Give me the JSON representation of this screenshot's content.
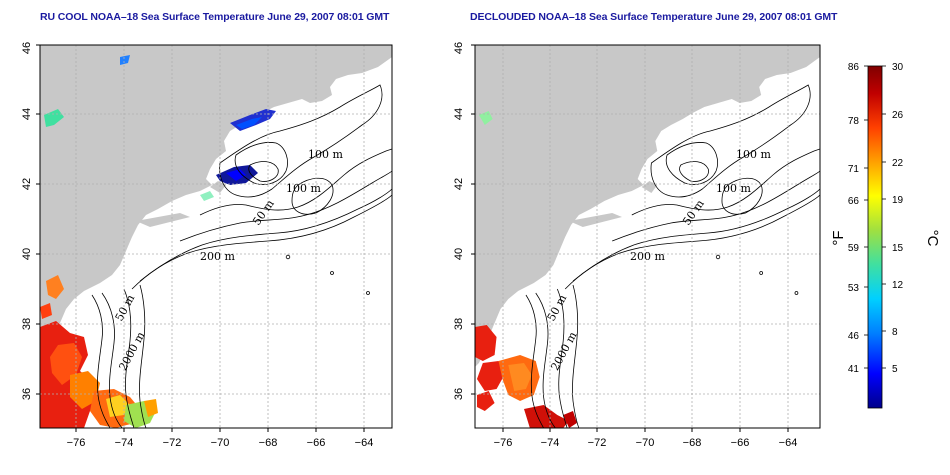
{
  "panels": [
    {
      "title": "RU COOL NOAA–18 Sea Surface Temperature June 29, 2007 08:01 GMT",
      "x_ticks": [
        "−76",
        "−74",
        "−72",
        "−70",
        "−68",
        "−66",
        "−64"
      ],
      "y_ticks": [
        "36",
        "38",
        "40",
        "42",
        "44",
        "46"
      ],
      "contour_labels": [
        "100 m",
        "100 m",
        "50 m",
        "200 m",
        "50 m",
        "2000 m"
      ]
    },
    {
      "title": "DECLOUDED NOAA–18 Sea Surface Temperature June 29, 2007 08:01 GMT",
      "x_ticks": [
        "−76",
        "−74",
        "−72",
        "−70",
        "−68",
        "−66",
        "−64"
      ],
      "y_ticks": [
        "36",
        "38",
        "40",
        "42",
        "44",
        "46"
      ],
      "contour_labels": [
        "100 m",
        "100 m",
        "50 m",
        "200 m",
        "50 m",
        "2000 m"
      ]
    }
  ],
  "colorbar": {
    "f_labels": [
      "86",
      "78",
      "71",
      "66",
      "59",
      "53",
      "46",
      "41"
    ],
    "c_labels": [
      "30",
      "26",
      "22",
      "19",
      "15",
      "12",
      "8",
      "5"
    ],
    "f_unit": "°F",
    "c_unit": "°C",
    "colors": [
      "#00008b",
      "#0000ff",
      "#0080ff",
      "#00d0ff",
      "#40e0a0",
      "#a0e040",
      "#ffff00",
      "#ffa000",
      "#ff4000",
      "#c00000",
      "#800000"
    ]
  },
  "colors": {
    "land": "#c8c8c8",
    "title": "#1a1aa0",
    "grid": "#b0b0b0"
  }
}
